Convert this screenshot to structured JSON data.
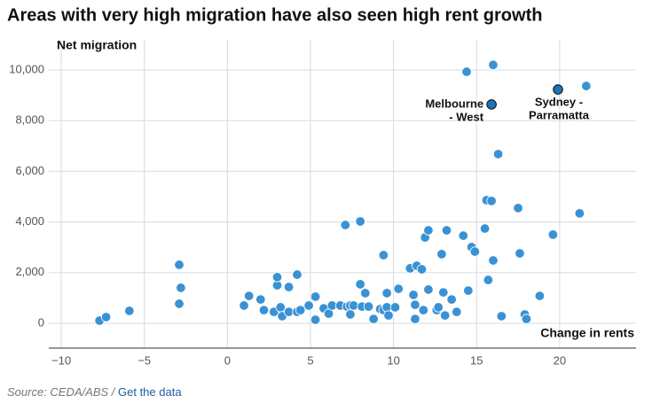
{
  "chart_data": {
    "type": "scatter",
    "title": "Areas with very high migration have also seen high rent growth",
    "y_label": "Net migration",
    "x_label": "Change in rents",
    "xlim": [
      -10.75,
      24.6
    ],
    "ylim": [
      -980,
      11190
    ],
    "xticks": [
      {
        "value": -10,
        "label": "−10"
      },
      {
        "value": -5,
        "label": "−5"
      },
      0,
      5,
      10,
      15,
      20
    ],
    "yticks": [
      0,
      {
        "value": 2000,
        "label": "2,000"
      },
      {
        "value": 4000,
        "label": "4,000"
      },
      {
        "value": 6000,
        "label": "6,000"
      },
      {
        "value": 8000,
        "label": "8,000"
      },
      {
        "value": 10000,
        "label": "10,000"
      }
    ],
    "grid": true,
    "color": "#3a92d4",
    "x": [
      -7.7,
      -7.3,
      -5.9,
      -2.9,
      -2.8,
      -2.9,
      1.0,
      1.3,
      2.0,
      2.2,
      2.8,
      3.0,
      3.0,
      3.2,
      3.3,
      3.7,
      3.7,
      4.2,
      4.2,
      4.4,
      4.9,
      5.3,
      5.3,
      5.8,
      6.1,
      6.3,
      6.8,
      7.1,
      7.2,
      7.4,
      7.4,
      7.6,
      8.0,
      8.0,
      8.1,
      8.3,
      8.5,
      8.8,
      9.2,
      9.4,
      9.4,
      9.6,
      9.6,
      9.7,
      10.1,
      10.3,
      11.0,
      11.2,
      11.3,
      11.3,
      11.4,
      11.7,
      11.8,
      11.9,
      12.1,
      12.1,
      12.6,
      12.7,
      12.9,
      13.0,
      13.1,
      13.2,
      13.5,
      13.8,
      14.2,
      14.4,
      14.5,
      14.7,
      14.9,
      15.5,
      15.6,
      15.7,
      15.9,
      16.0,
      16.3,
      16.5,
      16.0,
      17.5,
      17.6,
      17.9,
      18.0,
      18.8,
      19.6,
      21.2,
      21.6
    ],
    "values": [
      105,
      245,
      490,
      2310,
      1400,
      770,
      700,
      1080,
      940,
      520,
      450,
      1500,
      1820,
      630,
      280,
      450,
      1430,
      1920,
      450,
      520,
      700,
      1050,
      140,
      590,
      380,
      700,
      700,
      3880,
      660,
      700,
      350,
      700,
      4020,
      1540,
      660,
      1190,
      660,
      170,
      560,
      2690,
      520,
      1190,
      630,
      310,
      630,
      1360,
      2170,
      1120,
      170,
      730,
      2270,
      2130,
      520,
      3390,
      3670,
      1330,
      520,
      630,
      2730,
      1220,
      310,
      3670,
      940,
      450,
      3460,
      9930,
      1290,
      3010,
      2830,
      3740,
      4860,
      1710,
      4830,
      2480,
      6680,
      280,
      10200,
      4550,
      2760,
      350,
      170,
      1080,
      3500,
      4340,
      9370
    ],
    "highlights": [
      {
        "label_lines": [
          "Melbourne",
          "- West"
        ],
        "x": 15.9,
        "y": 8640,
        "color": "#1b73b8"
      },
      {
        "label_lines": [
          "Sydney -",
          "Parramatta"
        ],
        "x": 19.9,
        "y": 9230,
        "color": "#1b73b8"
      }
    ],
    "source": "Source: CEDA/ABS / ",
    "link": "Get the data"
  }
}
